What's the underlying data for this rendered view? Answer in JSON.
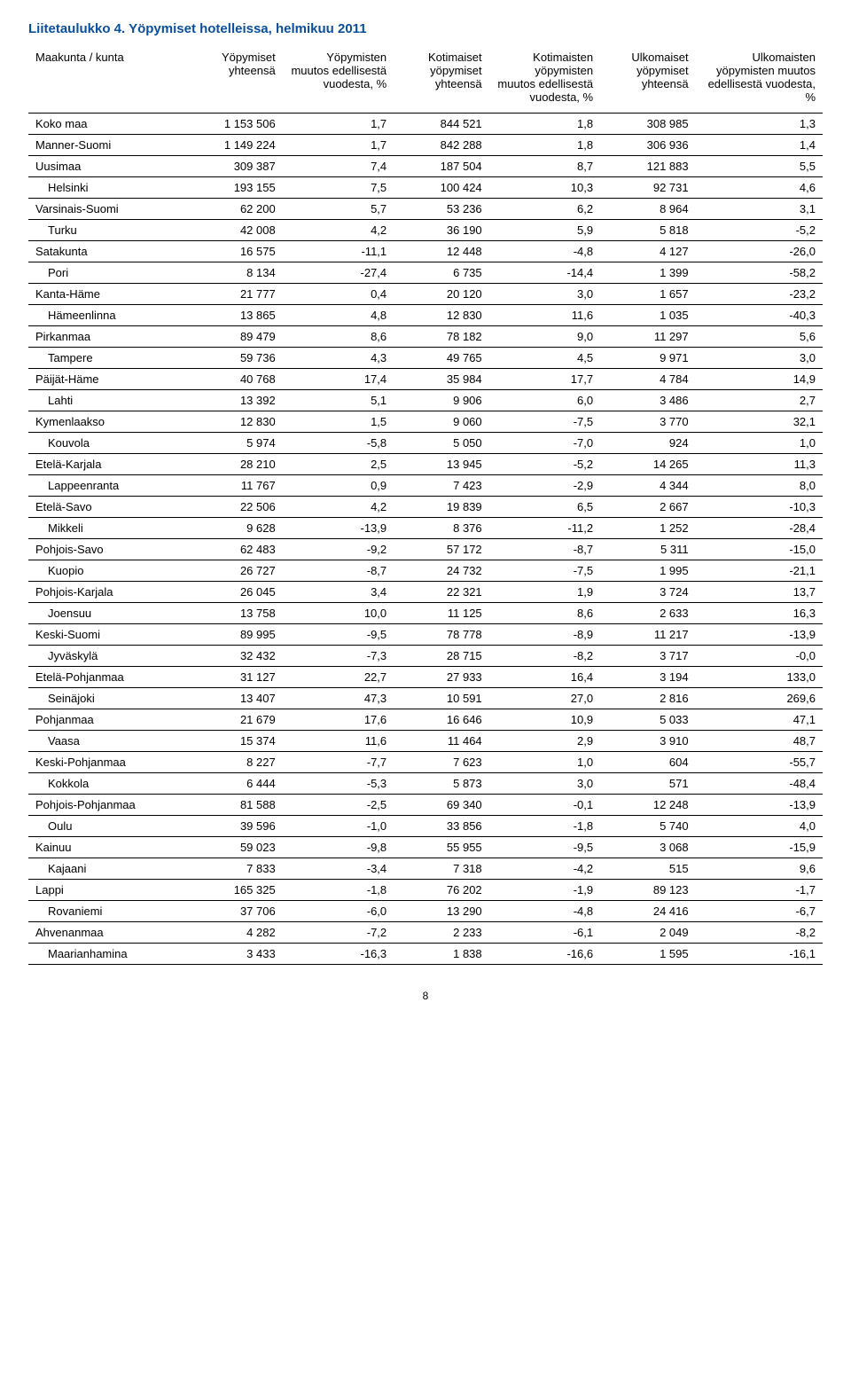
{
  "title": "Liitetaulukko 4. Yöpymiset hotelleissa, helmikuu 2011",
  "title_color": "#0a4f9c",
  "page_number": "8",
  "table": {
    "columns": [
      "Maakunta / kunta",
      "Yöpymiset yhteensä",
      "Yöpymisten muutos edellisestä vuodesta, %",
      "Kotimaiset yöpymiset yhteensä",
      "Kotimaisten yöpymisten muutos edellisestä vuodesta, %",
      "Ulkomaiset yöpymiset yhteensä",
      "Ulkomaisten yöpymisten muutos edellisestä vuodesta, %"
    ],
    "col_widths": [
      "20%",
      "12%",
      "14%",
      "12%",
      "14%",
      "12%",
      "16%"
    ],
    "rows": [
      {
        "label": "Koko maa",
        "indent": false,
        "v": [
          "1 153 506",
          "1,7",
          "844 521",
          "1,8",
          "308 985",
          "1,3"
        ]
      },
      {
        "label": "Manner-Suomi",
        "indent": false,
        "v": [
          "1 149 224",
          "1,7",
          "842 288",
          "1,8",
          "306 936",
          "1,4"
        ]
      },
      {
        "label": "Uusimaa",
        "indent": false,
        "v": [
          "309 387",
          "7,4",
          "187 504",
          "8,7",
          "121 883",
          "5,5"
        ]
      },
      {
        "label": "Helsinki",
        "indent": true,
        "v": [
          "193 155",
          "7,5",
          "100 424",
          "10,3",
          "92 731",
          "4,6"
        ]
      },
      {
        "label": "Varsinais-Suomi",
        "indent": false,
        "v": [
          "62 200",
          "5,7",
          "53 236",
          "6,2",
          "8 964",
          "3,1"
        ]
      },
      {
        "label": "Turku",
        "indent": true,
        "v": [
          "42 008",
          "4,2",
          "36 190",
          "5,9",
          "5 818",
          "-5,2"
        ]
      },
      {
        "label": "Satakunta",
        "indent": false,
        "v": [
          "16 575",
          "-11,1",
          "12 448",
          "-4,8",
          "4 127",
          "-26,0"
        ]
      },
      {
        "label": "Pori",
        "indent": true,
        "v": [
          "8 134",
          "-27,4",
          "6 735",
          "-14,4",
          "1 399",
          "-58,2"
        ]
      },
      {
        "label": "Kanta-Häme",
        "indent": false,
        "v": [
          "21 777",
          "0,4",
          "20 120",
          "3,0",
          "1 657",
          "-23,2"
        ]
      },
      {
        "label": "Hämeenlinna",
        "indent": true,
        "v": [
          "13 865",
          "4,8",
          "12 830",
          "11,6",
          "1 035",
          "-40,3"
        ]
      },
      {
        "label": "Pirkanmaa",
        "indent": false,
        "v": [
          "89 479",
          "8,6",
          "78 182",
          "9,0",
          "11 297",
          "5,6"
        ]
      },
      {
        "label": "Tampere",
        "indent": true,
        "v": [
          "59 736",
          "4,3",
          "49 765",
          "4,5",
          "9 971",
          "3,0"
        ]
      },
      {
        "label": "Päijät-Häme",
        "indent": false,
        "v": [
          "40 768",
          "17,4",
          "35 984",
          "17,7",
          "4 784",
          "14,9"
        ]
      },
      {
        "label": "Lahti",
        "indent": true,
        "v": [
          "13 392",
          "5,1",
          "9 906",
          "6,0",
          "3 486",
          "2,7"
        ]
      },
      {
        "label": "Kymenlaakso",
        "indent": false,
        "v": [
          "12 830",
          "1,5",
          "9 060",
          "-7,5",
          "3 770",
          "32,1"
        ]
      },
      {
        "label": "Kouvola",
        "indent": true,
        "v": [
          "5 974",
          "-5,8",
          "5 050",
          "-7,0",
          "924",
          "1,0"
        ]
      },
      {
        "label": "Etelä-Karjala",
        "indent": false,
        "v": [
          "28 210",
          "2,5",
          "13 945",
          "-5,2",
          "14 265",
          "11,3"
        ]
      },
      {
        "label": "Lappeenranta",
        "indent": true,
        "v": [
          "11 767",
          "0,9",
          "7 423",
          "-2,9",
          "4 344",
          "8,0"
        ]
      },
      {
        "label": "Etelä-Savo",
        "indent": false,
        "v": [
          "22 506",
          "4,2",
          "19 839",
          "6,5",
          "2 667",
          "-10,3"
        ]
      },
      {
        "label": "Mikkeli",
        "indent": true,
        "v": [
          "9 628",
          "-13,9",
          "8 376",
          "-11,2",
          "1 252",
          "-28,4"
        ]
      },
      {
        "label": "Pohjois-Savo",
        "indent": false,
        "v": [
          "62 483",
          "-9,2",
          "57 172",
          "-8,7",
          "5 311",
          "-15,0"
        ]
      },
      {
        "label": "Kuopio",
        "indent": true,
        "v": [
          "26 727",
          "-8,7",
          "24 732",
          "-7,5",
          "1 995",
          "-21,1"
        ]
      },
      {
        "label": "Pohjois-Karjala",
        "indent": false,
        "v": [
          "26 045",
          "3,4",
          "22 321",
          "1,9",
          "3 724",
          "13,7"
        ]
      },
      {
        "label": "Joensuu",
        "indent": true,
        "v": [
          "13 758",
          "10,0",
          "11 125",
          "8,6",
          "2 633",
          "16,3"
        ]
      },
      {
        "label": "Keski-Suomi",
        "indent": false,
        "v": [
          "89 995",
          "-9,5",
          "78 778",
          "-8,9",
          "11 217",
          "-13,9"
        ]
      },
      {
        "label": "Jyväskylä",
        "indent": true,
        "v": [
          "32 432",
          "-7,3",
          "28 715",
          "-8,2",
          "3 717",
          "-0,0"
        ]
      },
      {
        "label": "Etelä-Pohjanmaa",
        "indent": false,
        "v": [
          "31 127",
          "22,7",
          "27 933",
          "16,4",
          "3 194",
          "133,0"
        ]
      },
      {
        "label": "Seinäjoki",
        "indent": true,
        "v": [
          "13 407",
          "47,3",
          "10 591",
          "27,0",
          "2 816",
          "269,6"
        ]
      },
      {
        "label": "Pohjanmaa",
        "indent": false,
        "v": [
          "21 679",
          "17,6",
          "16 646",
          "10,9",
          "5 033",
          "47,1"
        ]
      },
      {
        "label": "Vaasa",
        "indent": true,
        "v": [
          "15 374",
          "11,6",
          "11 464",
          "2,9",
          "3 910",
          "48,7"
        ]
      },
      {
        "label": "Keski-Pohjanmaa",
        "indent": false,
        "v": [
          "8 227",
          "-7,7",
          "7 623",
          "1,0",
          "604",
          "-55,7"
        ]
      },
      {
        "label": "Kokkola",
        "indent": true,
        "v": [
          "6 444",
          "-5,3",
          "5 873",
          "3,0",
          "571",
          "-48,4"
        ]
      },
      {
        "label": "Pohjois-Pohjanmaa",
        "indent": false,
        "v": [
          "81 588",
          "-2,5",
          "69 340",
          "-0,1",
          "12 248",
          "-13,9"
        ]
      },
      {
        "label": "Oulu",
        "indent": true,
        "v": [
          "39 596",
          "-1,0",
          "33 856",
          "-1,8",
          "5 740",
          "4,0"
        ]
      },
      {
        "label": "Kainuu",
        "indent": false,
        "v": [
          "59 023",
          "-9,8",
          "55 955",
          "-9,5",
          "3 068",
          "-15,9"
        ]
      },
      {
        "label": "Kajaani",
        "indent": true,
        "v": [
          "7 833",
          "-3,4",
          "7 318",
          "-4,2",
          "515",
          "9,6"
        ]
      },
      {
        "label": "Lappi",
        "indent": false,
        "v": [
          "165 325",
          "-1,8",
          "76 202",
          "-1,9",
          "89 123",
          "-1,7"
        ]
      },
      {
        "label": "Rovaniemi",
        "indent": true,
        "v": [
          "37 706",
          "-6,0",
          "13 290",
          "-4,8",
          "24 416",
          "-6,7"
        ]
      },
      {
        "label": "Ahvenanmaa",
        "indent": false,
        "v": [
          "4 282",
          "-7,2",
          "2 233",
          "-6,1",
          "2 049",
          "-8,2"
        ]
      },
      {
        "label": "Maarianhamina",
        "indent": true,
        "v": [
          "3 433",
          "-16,3",
          "1 838",
          "-16,6",
          "1 595",
          "-16,1"
        ]
      }
    ]
  }
}
